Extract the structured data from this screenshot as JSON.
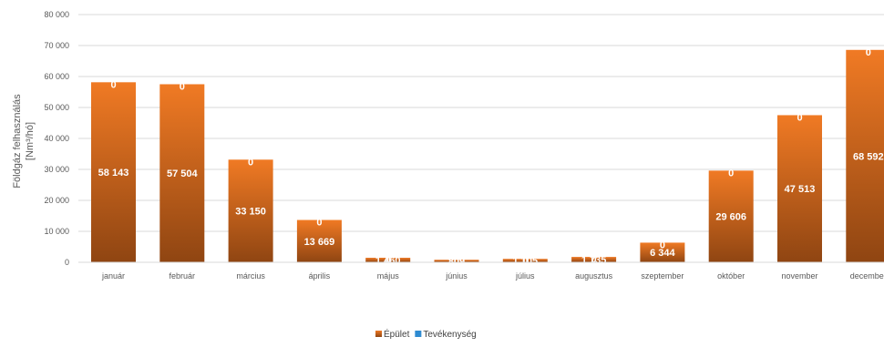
{
  "chart_data": {
    "type": "bar",
    "stacked": true,
    "ylabel": [
      "Földgáz felhasználás",
      "[Nm³/hó]"
    ],
    "ylim": [
      0,
      80000
    ],
    "yticks": [
      0,
      10000,
      20000,
      30000,
      40000,
      50000,
      60000,
      70000,
      80000
    ],
    "ytick_labels": [
      "0",
      "10 000",
      "20 000",
      "30 000",
      "40 000",
      "50 000",
      "60 000",
      "70 000",
      "80 000"
    ],
    "grid": true,
    "legend_position": "bottom",
    "categories": [
      "január",
      "február",
      "március",
      "április",
      "május",
      "június",
      "július",
      "augusztus",
      "szeptember",
      "október",
      "november",
      "december"
    ],
    "series": [
      {
        "name": "Épület",
        "color": "#E0661C",
        "values": [
          58143,
          57504,
          33150,
          13669,
          1460,
          809,
          1105,
          1735,
          6344,
          29606,
          47513,
          68592
        ],
        "labels": [
          "58 143",
          "57 504",
          "33 150",
          "13 669",
          "1 460",
          "809",
          "1 105",
          "1 735",
          "6 344",
          "29 606",
          "47 513",
          "68 592"
        ]
      },
      {
        "name": "Tevékenység",
        "color": "#2E8BD1",
        "values": [
          0,
          0,
          0,
          0,
          0,
          0,
          0,
          0,
          0,
          0,
          0,
          0
        ],
        "labels": [
          "0",
          "0",
          "0",
          "0",
          "0",
          "0",
          "0",
          "0",
          "0",
          "0",
          "0",
          "0"
        ]
      }
    ]
  }
}
